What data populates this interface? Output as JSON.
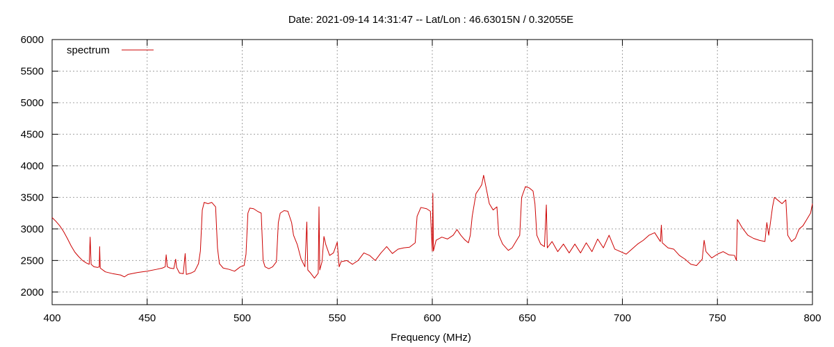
{
  "chart_data": {
    "type": "line",
    "title": "Date: 2021-09-14 14:31:47  --  Lat/Lon : 46.63015N / 0.32055E",
    "xlabel": "Frequency (MHz)",
    "ylabel": "",
    "xlim": [
      400,
      800
    ],
    "ylim": [
      1800,
      6000
    ],
    "x_ticks": [
      400,
      450,
      500,
      550,
      600,
      650,
      700,
      750,
      800
    ],
    "y_ticks": [
      2000,
      2500,
      3000,
      3500,
      4000,
      4500,
      5000,
      5500,
      6000
    ],
    "grid": true,
    "legend_position": "top-left",
    "series": [
      {
        "name": "spectrum",
        "color": "#cc0000",
        "points": [
          [
            400,
            3180
          ],
          [
            402,
            3120
          ],
          [
            404,
            3050
          ],
          [
            406,
            2960
          ],
          [
            408,
            2850
          ],
          [
            410,
            2730
          ],
          [
            412,
            2630
          ],
          [
            414,
            2560
          ],
          [
            416,
            2500
          ],
          [
            418,
            2460
          ],
          [
            419.5,
            2440
          ],
          [
            420,
            2870
          ],
          [
            420.5,
            2440
          ],
          [
            422,
            2400
          ],
          [
            424,
            2390
          ],
          [
            424.8,
            2400
          ],
          [
            425,
            2720
          ],
          [
            425.3,
            2380
          ],
          [
            428,
            2320
          ],
          [
            432,
            2290
          ],
          [
            436,
            2270
          ],
          [
            438,
            2240
          ],
          [
            440,
            2280
          ],
          [
            445,
            2310
          ],
          [
            450,
            2330
          ],
          [
            455,
            2360
          ],
          [
            458,
            2380
          ],
          [
            459.5,
            2400
          ],
          [
            460,
            2590
          ],
          [
            460.6,
            2400
          ],
          [
            462,
            2380
          ],
          [
            464,
            2370
          ],
          [
            465,
            2520
          ],
          [
            465.5,
            2390
          ],
          [
            467,
            2300
          ],
          [
            469,
            2290
          ],
          [
            470,
            2610
          ],
          [
            470.6,
            2280
          ],
          [
            473,
            2300
          ],
          [
            475,
            2330
          ],
          [
            477,
            2450
          ],
          [
            478,
            2650
          ],
          [
            479,
            3300
          ],
          [
            480,
            3420
          ],
          [
            482,
            3400
          ],
          [
            484,
            3420
          ],
          [
            486,
            3350
          ],
          [
            487,
            2700
          ],
          [
            488,
            2450
          ],
          [
            490,
            2380
          ],
          [
            493,
            2360
          ],
          [
            496,
            2330
          ],
          [
            499,
            2400
          ],
          [
            501,
            2420
          ],
          [
            502,
            2600
          ],
          [
            503,
            3250
          ],
          [
            504,
            3330
          ],
          [
            506,
            3320
          ],
          [
            508,
            3280
          ],
          [
            510,
            3250
          ],
          [
            511,
            2500
          ],
          [
            512,
            2400
          ],
          [
            514,
            2370
          ],
          [
            516,
            2400
          ],
          [
            518,
            2480
          ],
          [
            519,
            3100
          ],
          [
            520,
            3250
          ],
          [
            522,
            3290
          ],
          [
            524,
            3280
          ],
          [
            526,
            3100
          ],
          [
            527,
            2900
          ],
          [
            529,
            2750
          ],
          [
            531,
            2520
          ],
          [
            533,
            2400
          ],
          [
            534,
            3110
          ],
          [
            534.5,
            2350
          ],
          [
            536,
            2300
          ],
          [
            538,
            2220
          ],
          [
            540,
            2300
          ],
          [
            540.4,
            3350
          ],
          [
            540.8,
            2350
          ],
          [
            542,
            2480
          ],
          [
            543,
            2880
          ],
          [
            544,
            2750
          ],
          [
            546,
            2580
          ],
          [
            548,
            2620
          ],
          [
            550,
            2790
          ],
          [
            551,
            2400
          ],
          [
            552,
            2480
          ],
          [
            555,
            2500
          ],
          [
            558,
            2440
          ],
          [
            561,
            2500
          ],
          [
            564,
            2620
          ],
          [
            567,
            2580
          ],
          [
            570,
            2500
          ],
          [
            573,
            2620
          ],
          [
            576,
            2720
          ],
          [
            579,
            2610
          ],
          [
            582,
            2680
          ],
          [
            585,
            2700
          ],
          [
            588,
            2710
          ],
          [
            591,
            2780
          ],
          [
            592,
            3200
          ],
          [
            594,
            3340
          ],
          [
            597,
            3320
          ],
          [
            599,
            3280
          ],
          [
            600,
            2650
          ],
          [
            600.3,
            3560
          ],
          [
            600.6,
            2650
          ],
          [
            602,
            2820
          ],
          [
            605,
            2870
          ],
          [
            608,
            2840
          ],
          [
            611,
            2900
          ],
          [
            613,
            2990
          ],
          [
            615,
            2900
          ],
          [
            617,
            2830
          ],
          [
            619,
            2780
          ],
          [
            620,
            2900
          ],
          [
            621,
            3200
          ],
          [
            623,
            3560
          ],
          [
            625,
            3650
          ],
          [
            626,
            3700
          ],
          [
            627,
            3850
          ],
          [
            628,
            3700
          ],
          [
            630,
            3400
          ],
          [
            632,
            3300
          ],
          [
            634,
            3350
          ],
          [
            635,
            2900
          ],
          [
            637,
            2760
          ],
          [
            640,
            2660
          ],
          [
            642,
            2700
          ],
          [
            644,
            2800
          ],
          [
            646,
            2900
          ],
          [
            647,
            3500
          ],
          [
            649,
            3670
          ],
          [
            651,
            3650
          ],
          [
            653,
            3600
          ],
          [
            654,
            3400
          ],
          [
            655,
            2900
          ],
          [
            657,
            2760
          ],
          [
            659,
            2720
          ],
          [
            660,
            3380
          ],
          [
            660.5,
            2700
          ],
          [
            663,
            2800
          ],
          [
            666,
            2640
          ],
          [
            669,
            2760
          ],
          [
            672,
            2620
          ],
          [
            675,
            2760
          ],
          [
            678,
            2620
          ],
          [
            681,
            2780
          ],
          [
            684,
            2640
          ],
          [
            687,
            2840
          ],
          [
            690,
            2700
          ],
          [
            693,
            2900
          ],
          [
            696,
            2680
          ],
          [
            699,
            2640
          ],
          [
            702,
            2600
          ],
          [
            705,
            2680
          ],
          [
            708,
            2760
          ],
          [
            711,
            2820
          ],
          [
            714,
            2900
          ],
          [
            717,
            2940
          ],
          [
            720,
            2800
          ],
          [
            720.5,
            3060
          ],
          [
            721,
            2780
          ],
          [
            724,
            2700
          ],
          [
            727,
            2680
          ],
          [
            730,
            2580
          ],
          [
            733,
            2520
          ],
          [
            736,
            2440
          ],
          [
            739,
            2420
          ],
          [
            742,
            2520
          ],
          [
            743,
            2820
          ],
          [
            744,
            2640
          ],
          [
            747,
            2540
          ],
          [
            750,
            2600
          ],
          [
            753,
            2640
          ],
          [
            756,
            2590
          ],
          [
            759,
            2580
          ],
          [
            760,
            2500
          ],
          [
            760.5,
            3150
          ],
          [
            763,
            3020
          ],
          [
            766,
            2900
          ],
          [
            769,
            2850
          ],
          [
            772,
            2820
          ],
          [
            775,
            2800
          ],
          [
            776,
            3100
          ],
          [
            777,
            2900
          ],
          [
            779,
            3350
          ],
          [
            780,
            3500
          ],
          [
            782,
            3450
          ],
          [
            784,
            3400
          ],
          [
            786,
            3460
          ],
          [
            787,
            2900
          ],
          [
            789,
            2800
          ],
          [
            791,
            2850
          ],
          [
            793,
            3000
          ],
          [
            795,
            3050
          ],
          [
            797,
            3150
          ],
          [
            799,
            3250
          ],
          [
            800,
            3400
          ]
        ]
      }
    ]
  }
}
